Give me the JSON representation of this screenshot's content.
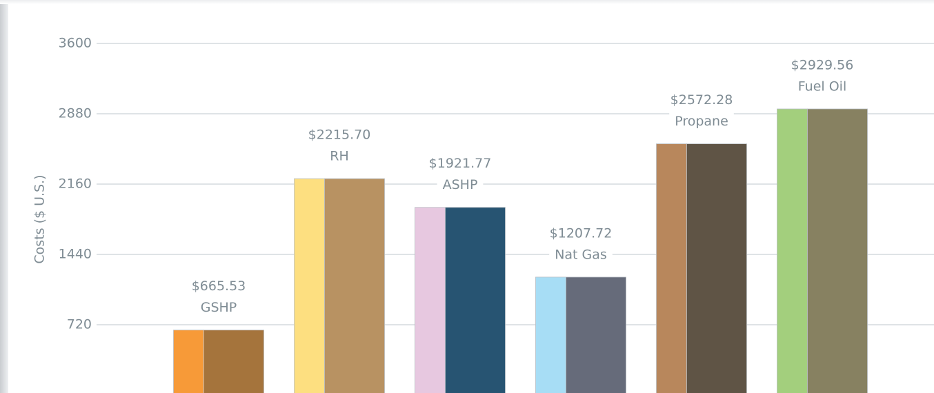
{
  "chart_data": {
    "type": "bar",
    "y_label": "Costs ($ U.S.)",
    "categories": [
      "GSHP",
      "RH",
      "ASHP",
      "Nat Gas",
      "Propane",
      "Fuel Oil"
    ],
    "values": [
      665.53,
      2215.7,
      1921.77,
      1207.72,
      2572.28,
      2929.56
    ],
    "value_labels": [
      "$665.53",
      "$2215.70",
      "$1921.77",
      "$1207.72",
      "$2572.28",
      "$2929.56"
    ],
    "colors": [
      [
        "#f79a38",
        "#a5743c"
      ],
      [
        "#fddf80",
        "#b89262"
      ],
      [
        "#e7c8e0",
        "#275472"
      ],
      [
        "#a7ddf5",
        "#666b7a"
      ],
      [
        "#b8875c",
        "#5f5445"
      ],
      [
        "#a3cf7d",
        "#878161"
      ]
    ],
    "ylim": [
      0,
      3600
    ],
    "yticks": [
      720,
      1440,
      2160,
      2880,
      3600
    ],
    "grid": true
  }
}
